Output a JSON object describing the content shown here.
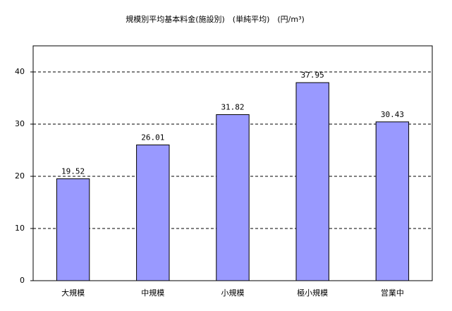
{
  "chart_data": {
    "type": "bar",
    "title": "規模別平均基本料金(施設別)　(単純平均)　(円/m³)",
    "categories": [
      "大規模",
      "中規模",
      "小規模",
      "極小規模",
      "営業中"
    ],
    "values": [
      19.52,
      26.01,
      31.82,
      37.95,
      30.43
    ],
    "color": "#9999ff",
    "ylim": [
      0,
      45
    ],
    "yticks": [
      0,
      10,
      20,
      30,
      40
    ],
    "grid": true
  }
}
